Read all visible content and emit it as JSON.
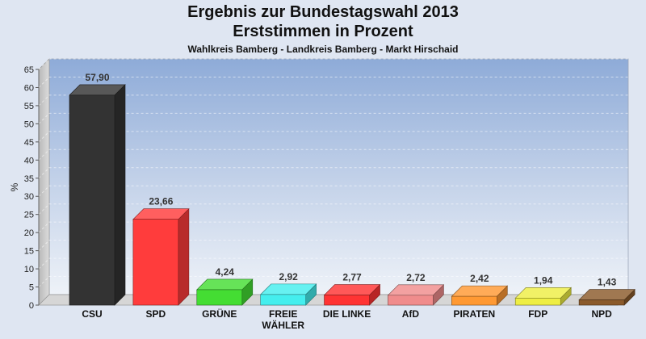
{
  "header": {
    "title_line1": "Ergebnis zur Bundestagswahl 2013",
    "title_line2": "Erststimmen in Prozent",
    "subtitle": "Wahlkreis Bamberg - Landkreis Bamberg - Markt Hirschaid"
  },
  "chart_data": {
    "type": "bar",
    "title": "Ergebnis zur Bundestagswahl 2013 Erststimmen in Prozent",
    "subtitle": "Wahlkreis Bamberg - Landkreis Bamberg - Markt Hirschaid",
    "ylabel": "%",
    "xlabel": "",
    "ylim": [
      0,
      65
    ],
    "yticks": [
      0,
      5,
      10,
      15,
      20,
      25,
      30,
      35,
      40,
      45,
      50,
      55,
      60,
      65
    ],
    "grid": true,
    "categories": [
      "CSU",
      "SPD",
      "GRÜNE",
      "FREIE WÄHLER",
      "DIE LINKE",
      "AfD",
      "PIRATEN",
      "FDP",
      "NPD"
    ],
    "category_lines": [
      [
        "CSU"
      ],
      [
        "SPD"
      ],
      [
        "GRÜNE"
      ],
      [
        "FREIE",
        "WÄHLER"
      ],
      [
        "DIE LINKE"
      ],
      [
        "AfD"
      ],
      [
        "PIRATEN"
      ],
      [
        "FDP"
      ],
      [
        "NPD"
      ]
    ],
    "values": [
      57.9,
      23.66,
      4.24,
      2.92,
      2.77,
      2.72,
      2.42,
      1.94,
      1.43
    ],
    "value_labels": [
      "57,90",
      "23,66",
      "4,24",
      "2,92",
      "2,77",
      "2,72",
      "2,42",
      "1,94",
      "1,43"
    ],
    "colors": [
      "#333333",
      "#ff3c3c",
      "#44dd33",
      "#44eeee",
      "#ff3333",
      "#f08c8c",
      "#ff9933",
      "#eeee44",
      "#8b5a2b"
    ]
  }
}
